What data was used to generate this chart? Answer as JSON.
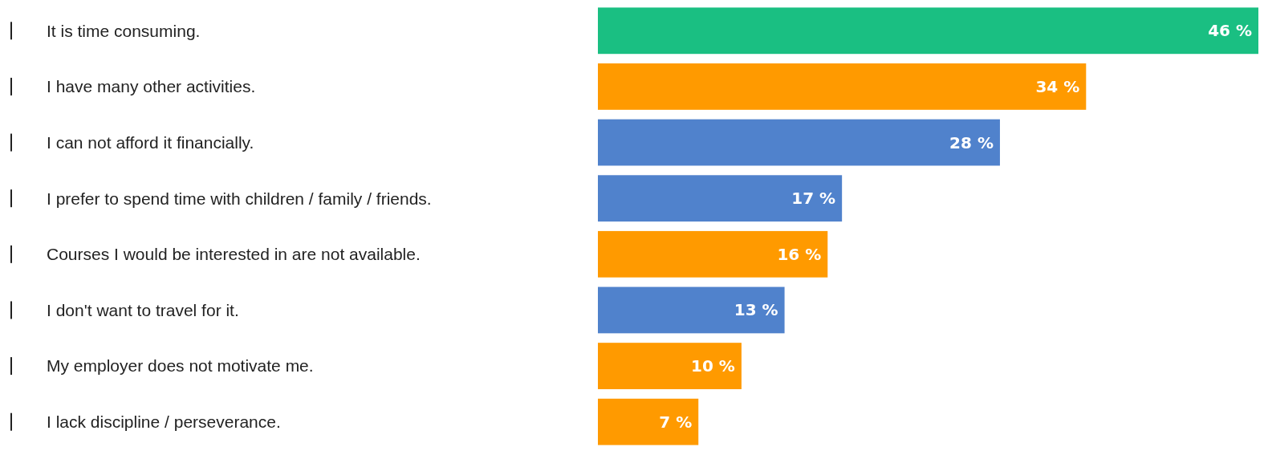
{
  "chart_data": {
    "type": "bar",
    "orientation": "horizontal",
    "categories": [
      "It is time consuming.",
      "I have many other activities.",
      "I can not afford it financially.",
      "I prefer to spend time with children / family / friends.",
      "Courses I would be interested in are not available.",
      "I don't want to travel for it.",
      "My employer does not motivate me.",
      "I lack discipline / perseverance."
    ],
    "values": [
      46,
      34,
      28,
      17,
      16,
      13,
      10,
      7
    ],
    "value_labels": [
      "46 %",
      "34 %",
      "28 %",
      "17 %",
      "16 %",
      "13 %",
      "10 %",
      "7 %"
    ],
    "colors": [
      "#1abf82",
      "#ff9a00",
      "#5082cc",
      "#5082cc",
      "#ff9a00",
      "#5082cc",
      "#ff9a00",
      "#ff9a00"
    ],
    "xlim": [
      0,
      46
    ],
    "tick_labels": "y"
  }
}
